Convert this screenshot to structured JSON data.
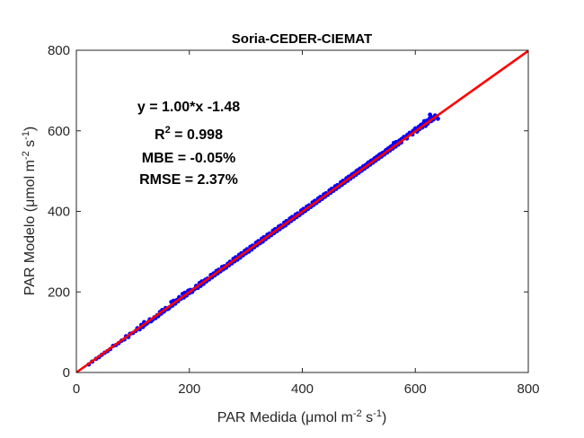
{
  "chart_data": {
    "type": "scatter",
    "title": "Soria-CEDER-CIEMAT",
    "xlabel": "PAR Medida (μmol m-2 s-1)",
    "ylabel": "PAR Modelo (μmol m-2 s-1)",
    "xlabel_parts": {
      "pre": "PAR Medida (",
      "mu": "μ",
      "unit": "mol m",
      "exp1": "-2",
      "mid": " s",
      "exp2": "-1",
      "post": ")"
    },
    "ylabel_parts": {
      "pre": "PAR Modelo (",
      "mu": "μ",
      "unit": "mol m",
      "exp1": "-2",
      "mid": " s",
      "exp2": "-1",
      "post": ")"
    },
    "xlim": [
      0,
      800
    ],
    "ylim": [
      0,
      800
    ],
    "xticks": [
      0,
      200,
      400,
      600,
      800
    ],
    "yticks": [
      0,
      200,
      400,
      600,
      800
    ],
    "grid": false,
    "annotations": {
      "equation": "y = 1.00*x -1.48",
      "r2_label": "R",
      "r2_exp": "2",
      "r2_value": " = 0.998",
      "mbe": "MBE = -0.05%",
      "rmse": "RMSE = 2.37%"
    },
    "fit_line": {
      "slope": 1.0,
      "intercept": -1.48,
      "x_range": [
        0,
        800
      ],
      "color": "#ff0000"
    },
    "series": [
      {
        "marker_color": "#0000ff",
        "points": [
          [
            22,
            20
          ],
          [
            28,
            27
          ],
          [
            35,
            34
          ],
          [
            40,
            38
          ],
          [
            45,
            44
          ],
          [
            50,
            49
          ],
          [
            55,
            53
          ],
          [
            60,
            58
          ],
          [
            65,
            66
          ],
          [
            70,
            68
          ],
          [
            75,
            73
          ],
          [
            80,
            79
          ],
          [
            85,
            82
          ],
          [
            88,
            90
          ],
          [
            92,
            88
          ],
          [
            95,
            96
          ],
          [
            100,
            98
          ],
          [
            105,
            103
          ],
          [
            108,
            110
          ],
          [
            112,
            107
          ],
          [
            115,
            118
          ],
          [
            118,
            113
          ],
          [
            120,
            125
          ],
          [
            122,
            119
          ],
          [
            125,
            122
          ],
          [
            128,
            126
          ],
          [
            130,
            132
          ],
          [
            132,
            127
          ],
          [
            135,
            131
          ],
          [
            138,
            137
          ],
          [
            140,
            135
          ],
          [
            143,
            142
          ],
          [
            145,
            140
          ],
          [
            148,
            150
          ],
          [
            150,
            146
          ],
          [
            152,
            155
          ],
          [
            155,
            151
          ],
          [
            158,
            160
          ],
          [
            160,
            157
          ],
          [
            163,
            158
          ],
          [
            165,
            162
          ],
          [
            168,
            175
          ],
          [
            170,
            166
          ],
          [
            172,
            178
          ],
          [
            175,
            171
          ],
          [
            178,
            180
          ],
          [
            180,
            177
          ],
          [
            182,
            187
          ],
          [
            185,
            183
          ],
          [
            188,
            195
          ],
          [
            190,
            186
          ],
          [
            192,
            198
          ],
          [
            195,
            191
          ],
          [
            198,
            203
          ],
          [
            200,
            197
          ],
          [
            202,
            205
          ],
          [
            205,
            200
          ],
          [
            208,
            206
          ],
          [
            210,
            208
          ],
          [
            212,
            215
          ],
          [
            215,
            210
          ],
          [
            218,
            222
          ],
          [
            220,
            215
          ],
          [
            222,
            226
          ],
          [
            225,
            220
          ],
          [
            228,
            230
          ],
          [
            230,
            226
          ],
          [
            232,
            233
          ],
          [
            235,
            231
          ],
          [
            238,
            242
          ],
          [
            240,
            236
          ],
          [
            243,
            246
          ],
          [
            245,
            241
          ],
          [
            248,
            252
          ],
          [
            250,
            246
          ],
          [
            252,
            255
          ],
          [
            255,
            251
          ],
          [
            258,
            262
          ],
          [
            260,
            256
          ],
          [
            262,
            264
          ],
          [
            265,
            260
          ],
          [
            268,
            270
          ],
          [
            270,
            266
          ],
          [
            272,
            275
          ],
          [
            275,
            271
          ],
          [
            278,
            282
          ],
          [
            280,
            276
          ],
          [
            282,
            286
          ],
          [
            285,
            280
          ],
          [
            288,
            292
          ],
          [
            290,
            285
          ],
          [
            292,
            296
          ],
          [
            295,
            291
          ],
          [
            298,
            302
          ],
          [
            300,
            296
          ],
          [
            302,
            306
          ],
          [
            305,
            300
          ],
          [
            308,
            312
          ],
          [
            310,
            305
          ],
          [
            312,
            315
          ],
          [
            315,
            311
          ],
          [
            318,
            322
          ],
          [
            320,
            316
          ],
          [
            322,
            326
          ],
          [
            325,
            321
          ],
          [
            328,
            332
          ],
          [
            330,
            325
          ],
          [
            332,
            336
          ],
          [
            335,
            331
          ],
          [
            338,
            342
          ],
          [
            340,
            336
          ],
          [
            342,
            345
          ],
          [
            345,
            341
          ],
          [
            348,
            352
          ],
          [
            350,
            346
          ],
          [
            352,
            356
          ],
          [
            355,
            351
          ],
          [
            358,
            362
          ],
          [
            360,
            356
          ],
          [
            362,
            365
          ],
          [
            365,
            361
          ],
          [
            368,
            372
          ],
          [
            370,
            365
          ],
          [
            372,
            376
          ],
          [
            375,
            371
          ],
          [
            378,
            382
          ],
          [
            380,
            376
          ],
          [
            382,
            386
          ],
          [
            385,
            381
          ],
          [
            388,
            392
          ],
          [
            390,
            386
          ],
          [
            392,
            395
          ],
          [
            395,
            391
          ],
          [
            398,
            402
          ],
          [
            400,
            396
          ],
          [
            402,
            406
          ],
          [
            405,
            401
          ],
          [
            408,
            412
          ],
          [
            410,
            406
          ],
          [
            412,
            415
          ],
          [
            415,
            411
          ],
          [
            418,
            422
          ],
          [
            420,
            416
          ],
          [
            422,
            426
          ],
          [
            425,
            421
          ],
          [
            428,
            432
          ],
          [
            430,
            426
          ],
          [
            432,
            436
          ],
          [
            435,
            431
          ],
          [
            438,
            442
          ],
          [
            440,
            436
          ],
          [
            442,
            445
          ],
          [
            445,
            441
          ],
          [
            448,
            452
          ],
          [
            450,
            446
          ],
          [
            452,
            456
          ],
          [
            455,
            451
          ],
          [
            458,
            462
          ],
          [
            460,
            456
          ],
          [
            462,
            465
          ],
          [
            465,
            461
          ],
          [
            468,
            472
          ],
          [
            470,
            466
          ],
          [
            472,
            476
          ],
          [
            475,
            471
          ],
          [
            478,
            482
          ],
          [
            480,
            476
          ],
          [
            482,
            486
          ],
          [
            485,
            481
          ],
          [
            488,
            492
          ],
          [
            490,
            486
          ],
          [
            492,
            495
          ],
          [
            495,
            491
          ],
          [
            498,
            502
          ],
          [
            500,
            496
          ],
          [
            502,
            506
          ],
          [
            505,
            501
          ],
          [
            508,
            512
          ],
          [
            510,
            506
          ],
          [
            512,
            515
          ],
          [
            515,
            511
          ],
          [
            518,
            522
          ],
          [
            520,
            516
          ],
          [
            522,
            526
          ],
          [
            525,
            521
          ],
          [
            528,
            532
          ],
          [
            530,
            526
          ],
          [
            532,
            536
          ],
          [
            535,
            531
          ],
          [
            538,
            542
          ],
          [
            540,
            536
          ],
          [
            542,
            545
          ],
          [
            545,
            541
          ],
          [
            548,
            552
          ],
          [
            550,
            546
          ],
          [
            552,
            556
          ],
          [
            555,
            551
          ],
          [
            558,
            562
          ],
          [
            560,
            556
          ],
          [
            562,
            570
          ],
          [
            565,
            561
          ],
          [
            568,
            572
          ],
          [
            570,
            566
          ],
          [
            572,
            576
          ],
          [
            575,
            571
          ],
          [
            580,
            585
          ],
          [
            585,
            581
          ],
          [
            590,
            595
          ],
          [
            595,
            591
          ],
          [
            600,
            606
          ],
          [
            603,
            598
          ],
          [
            607,
            604
          ],
          [
            610,
            615
          ],
          [
            612,
            608
          ],
          [
            615,
            620
          ],
          [
            618,
            612
          ],
          [
            620,
            625
          ],
          [
            622,
            618
          ],
          [
            625,
            630
          ],
          [
            628,
            624
          ],
          [
            630,
            633
          ],
          [
            632,
            628
          ],
          [
            635,
            638
          ],
          [
            638,
            634
          ],
          [
            640,
            630
          ],
          [
            626,
            640
          ],
          [
            616,
            624
          ],
          [
            606,
            610
          ],
          [
            596,
            600
          ],
          [
            586,
            590
          ],
          [
            576,
            580
          ],
          [
            566,
            572
          ],
          [
            556,
            560
          ],
          [
            546,
            548
          ],
          [
            536,
            540
          ],
          [
            526,
            528
          ],
          [
            516,
            520
          ],
          [
            506,
            508
          ],
          [
            496,
            500
          ],
          [
            486,
            488
          ]
        ]
      }
    ]
  }
}
